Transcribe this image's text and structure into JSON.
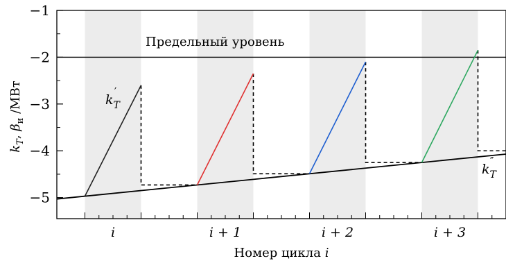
{
  "chart_data": {
    "type": "line",
    "xlabel": "Номер цикла i",
    "ylabel": "k_T, β_и /МВт",
    "ylim": [
      -5.45,
      -1
    ],
    "xlim": [
      0,
      8
    ],
    "y_ticks": [
      "−1",
      "−2",
      "−3",
      "−4",
      "−5"
    ],
    "x_tick_labels": [
      "i",
      "i + 1",
      "i + 2",
      "i + 3"
    ],
    "grid": false,
    "shaded_bands": [
      [
        0.5,
        1.5
      ],
      [
        2.5,
        3.5
      ],
      [
        4.5,
        5.5
      ],
      [
        6.5,
        7.5
      ]
    ],
    "limit_level": {
      "y": -2,
      "label": "Предельный уровень"
    },
    "base_line": {
      "x": [
        0,
        8
      ],
      "y": [
        -5.03,
        -4.07
      ],
      "label": "k″_T"
    },
    "growth_segments": [
      {
        "color": "#222222",
        "x": [
          0.5,
          1.5
        ],
        "y": [
          -4.97,
          -2.6
        ],
        "label": "k′_T"
      },
      {
        "color": "#e03030",
        "x": [
          2.5,
          3.5
        ],
        "y": [
          -4.73,
          -2.35
        ]
      },
      {
        "color": "#1f5fd0",
        "x": [
          4.5,
          5.5
        ],
        "y": [
          -4.49,
          -2.1
        ]
      },
      {
        "color": "#2ea860",
        "x": [
          6.5,
          7.5
        ],
        "y": [
          -4.25,
          -1.85
        ]
      }
    ],
    "dashed_steps": [
      {
        "x": [
          1.5,
          1.5,
          2.5
        ],
        "y": [
          -2.6,
          -4.73,
          -4.73
        ]
      },
      {
        "x": [
          3.5,
          3.5,
          4.5
        ],
        "y": [
          -2.35,
          -4.49,
          -4.49
        ]
      },
      {
        "x": [
          5.5,
          5.5,
          6.5
        ],
        "y": [
          -2.1,
          -4.25,
          -4.25
        ]
      },
      {
        "x": [
          7.5,
          7.5,
          8.0
        ],
        "y": [
          -1.85,
          -4.0,
          -4.0
        ]
      }
    ]
  }
}
